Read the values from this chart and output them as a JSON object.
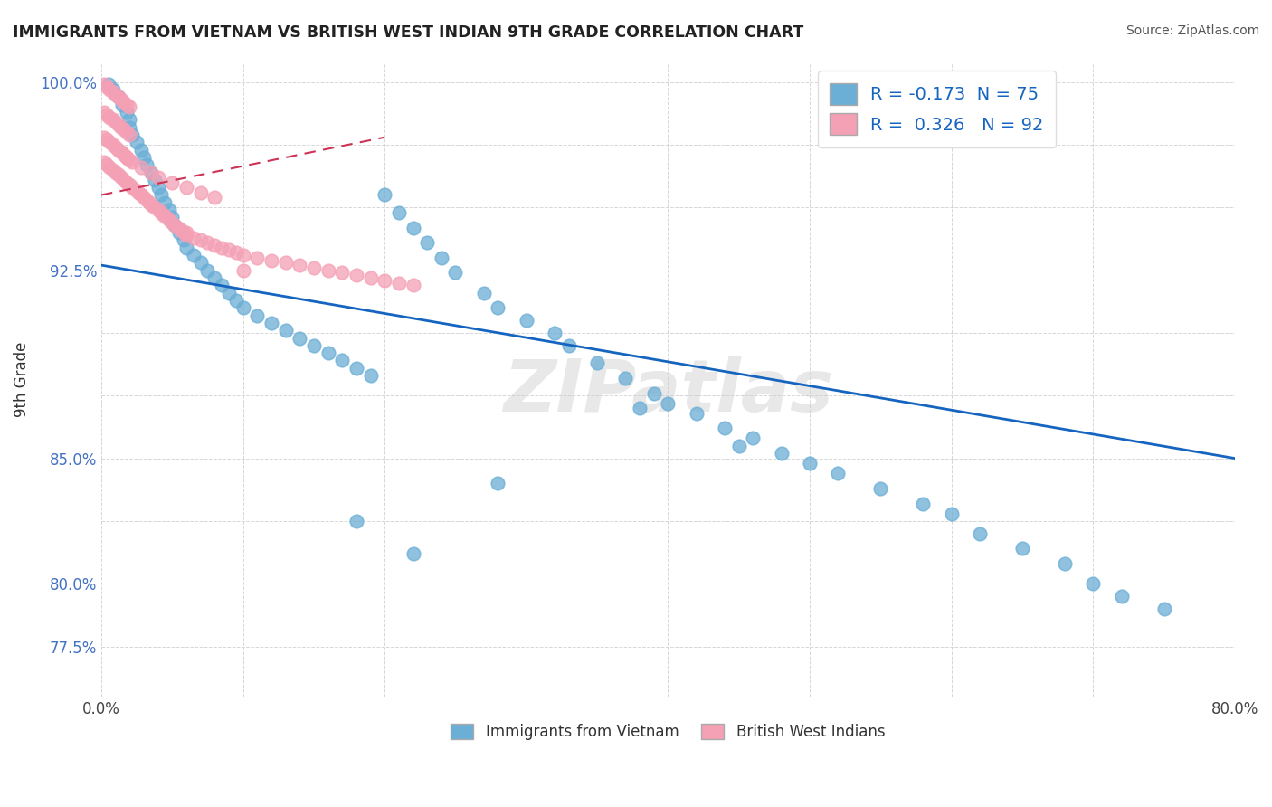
{
  "title": "IMMIGRANTS FROM VIETNAM VS BRITISH WEST INDIAN 9TH GRADE CORRELATION CHART",
  "source": "Source: ZipAtlas.com",
  "ylabel": "9th Grade",
  "x_min": 0.0,
  "x_max": 0.8,
  "y_min": 0.755,
  "y_max": 1.008,
  "blue_color": "#6baed6",
  "pink_color": "#f4a0b5",
  "blue_line_color": "#1565C0",
  "pink_line_color": "#cc3355",
  "pink_line_dash": [
    6,
    4
  ],
  "R_blue": -0.173,
  "N_blue": 75,
  "R_pink": 0.326,
  "N_pink": 92,
  "watermark": "ZIPatlas",
  "blue_scatter_x": [
    0.005,
    0.008,
    0.012,
    0.015,
    0.018,
    0.02,
    0.02,
    0.022,
    0.025,
    0.028,
    0.03,
    0.032,
    0.035,
    0.038,
    0.04,
    0.042,
    0.045,
    0.048,
    0.05,
    0.052,
    0.055,
    0.058,
    0.06,
    0.065,
    0.07,
    0.075,
    0.08,
    0.085,
    0.09,
    0.095,
    0.1,
    0.11,
    0.12,
    0.13,
    0.14,
    0.15,
    0.16,
    0.17,
    0.18,
    0.19,
    0.2,
    0.21,
    0.22,
    0.23,
    0.24,
    0.25,
    0.27,
    0.28,
    0.3,
    0.32,
    0.33,
    0.35,
    0.37,
    0.39,
    0.4,
    0.42,
    0.44,
    0.46,
    0.48,
    0.5,
    0.52,
    0.55,
    0.58,
    0.6,
    0.62,
    0.65,
    0.68,
    0.7,
    0.72,
    0.75,
    0.38,
    0.45,
    0.28,
    0.18,
    0.22
  ],
  "blue_scatter_y": [
    0.999,
    0.997,
    0.994,
    0.991,
    0.988,
    0.985,
    0.982,
    0.979,
    0.976,
    0.973,
    0.97,
    0.967,
    0.964,
    0.961,
    0.958,
    0.955,
    0.952,
    0.949,
    0.946,
    0.943,
    0.94,
    0.937,
    0.934,
    0.931,
    0.928,
    0.925,
    0.922,
    0.919,
    0.916,
    0.913,
    0.91,
    0.907,
    0.904,
    0.901,
    0.898,
    0.895,
    0.892,
    0.889,
    0.886,
    0.883,
    0.955,
    0.948,
    0.942,
    0.936,
    0.93,
    0.924,
    0.916,
    0.91,
    0.905,
    0.9,
    0.895,
    0.888,
    0.882,
    0.876,
    0.872,
    0.868,
    0.862,
    0.858,
    0.852,
    0.848,
    0.844,
    0.838,
    0.832,
    0.828,
    0.82,
    0.814,
    0.808,
    0.8,
    0.795,
    0.79,
    0.87,
    0.855,
    0.84,
    0.825,
    0.812
  ],
  "pink_scatter_x": [
    0.002,
    0.004,
    0.006,
    0.008,
    0.01,
    0.012,
    0.014,
    0.016,
    0.018,
    0.02,
    0.002,
    0.004,
    0.006,
    0.008,
    0.01,
    0.012,
    0.014,
    0.016,
    0.018,
    0.02,
    0.002,
    0.004,
    0.006,
    0.008,
    0.01,
    0.012,
    0.014,
    0.016,
    0.018,
    0.02,
    0.002,
    0.004,
    0.006,
    0.008,
    0.01,
    0.012,
    0.014,
    0.016,
    0.018,
    0.02,
    0.022,
    0.024,
    0.026,
    0.028,
    0.03,
    0.032,
    0.034,
    0.036,
    0.038,
    0.04,
    0.042,
    0.044,
    0.046,
    0.048,
    0.05,
    0.052,
    0.054,
    0.056,
    0.058,
    0.06,
    0.065,
    0.07,
    0.075,
    0.08,
    0.085,
    0.09,
    0.095,
    0.1,
    0.11,
    0.12,
    0.13,
    0.14,
    0.15,
    0.16,
    0.17,
    0.18,
    0.19,
    0.2,
    0.21,
    0.22,
    0.014,
    0.018,
    0.022,
    0.028,
    0.035,
    0.04,
    0.05,
    0.06,
    0.07,
    0.08,
    0.06,
    0.1
  ],
  "pink_scatter_y": [
    0.999,
    0.998,
    0.997,
    0.996,
    0.995,
    0.994,
    0.993,
    0.992,
    0.991,
    0.99,
    0.988,
    0.987,
    0.986,
    0.985,
    0.984,
    0.983,
    0.982,
    0.981,
    0.98,
    0.979,
    0.978,
    0.977,
    0.976,
    0.975,
    0.974,
    0.973,
    0.972,
    0.971,
    0.97,
    0.969,
    0.968,
    0.967,
    0.966,
    0.965,
    0.964,
    0.963,
    0.962,
    0.961,
    0.96,
    0.959,
    0.958,
    0.957,
    0.956,
    0.955,
    0.954,
    0.953,
    0.952,
    0.951,
    0.95,
    0.949,
    0.948,
    0.947,
    0.946,
    0.945,
    0.944,
    0.943,
    0.942,
    0.941,
    0.94,
    0.939,
    0.938,
    0.937,
    0.936,
    0.935,
    0.934,
    0.933,
    0.932,
    0.931,
    0.93,
    0.929,
    0.928,
    0.927,
    0.926,
    0.925,
    0.924,
    0.923,
    0.922,
    0.921,
    0.92,
    0.919,
    0.972,
    0.97,
    0.968,
    0.966,
    0.964,
    0.962,
    0.96,
    0.958,
    0.956,
    0.954,
    0.94,
    0.925
  ]
}
